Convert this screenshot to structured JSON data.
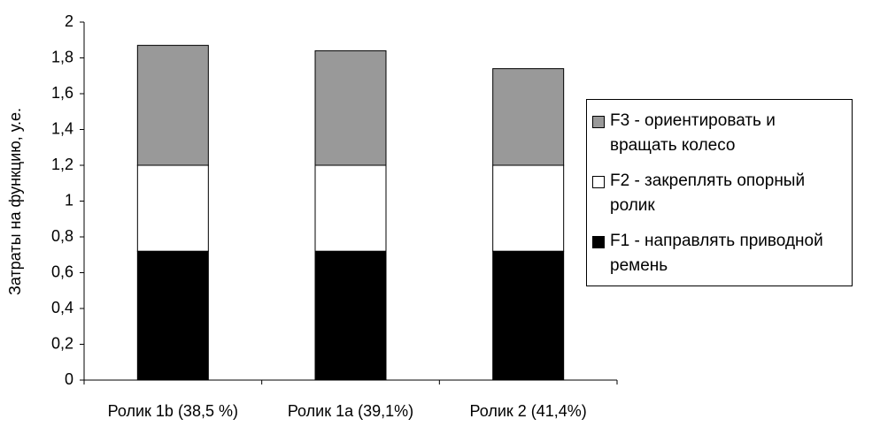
{
  "chart_data": {
    "type": "stacked_bar",
    "y_label": "Затраты на функцию, у.е.",
    "categories": [
      "Ролик 1b (38,5 %)",
      "Ролик 1a (39,1%)",
      "Ролик 2 (41,4%)"
    ],
    "series": [
      {
        "name": "F1 - направлять приводной ремень",
        "color": "#000000",
        "values": [
          0.72,
          0.72,
          0.72
        ]
      },
      {
        "name": "F2 - закреплять опорный ролик",
        "color": "#ffffff",
        "values": [
          0.48,
          0.48,
          0.48
        ]
      },
      {
        "name": "F3 - ориентировать и вращать колесо",
        "color": "#999999",
        "values": [
          0.67,
          0.64,
          0.54
        ]
      }
    ],
    "ylim": [
      0,
      2
    ],
    "yticks": [
      0,
      {
        "value": 0.2,
        "label": "0,2"
      },
      {
        "value": 0.4,
        "label": "0,4"
      },
      {
        "value": 0.6,
        "label": "0,6"
      },
      {
        "value": 0.8,
        "label": "0,8"
      },
      1,
      {
        "value": 1.2,
        "label": "1,2"
      },
      {
        "value": 1.4,
        "label": "1,4"
      },
      {
        "value": 1.6,
        "label": "1,6"
      },
      {
        "value": 1.8,
        "label": "1,8"
      },
      2
    ],
    "grid": false,
    "legend_position": "right"
  }
}
